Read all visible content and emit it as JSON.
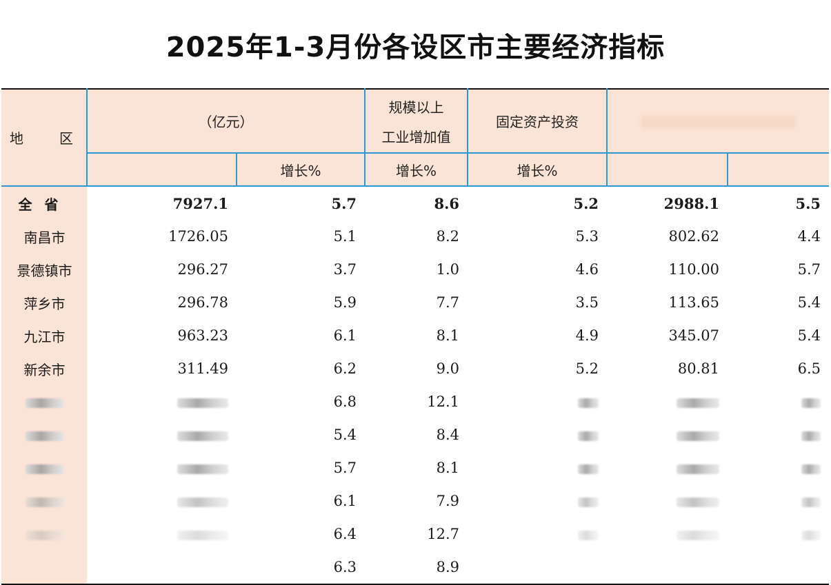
{
  "title": "2025年1-3月份各设区市主要经济指标",
  "header": {
    "region": "地 区",
    "region_a": "地",
    "region_b": "区",
    "gdp_unit": "（亿元）",
    "industrial_line1": "规模以上",
    "industrial_line2": "工业增加值",
    "fixed_asset": "固定资产投资",
    "growth_pct": "增长%"
  },
  "rows": [
    {
      "region": "全省",
      "gdp": "7927.1",
      "gdp_growth": "5.7",
      "industrial_growth": "8.6",
      "fixed_asset_growth": "5.2",
      "col5": "2988.1",
      "col6": "5.5",
      "total": true
    },
    {
      "region": "南昌市",
      "gdp": "1726.05",
      "gdp_growth": "5.1",
      "industrial_growth": "8.2",
      "fixed_asset_growth": "5.3",
      "col5": "802.62",
      "col6": "4.4"
    },
    {
      "region": "景德镇市",
      "gdp": "296.27",
      "gdp_growth": "3.7",
      "industrial_growth": "1.0",
      "fixed_asset_growth": "4.6",
      "col5": "110.00",
      "col6": "5.7"
    },
    {
      "region": "萍乡市",
      "gdp": "296.78",
      "gdp_growth": "5.9",
      "industrial_growth": "7.7",
      "fixed_asset_growth": "3.5",
      "col5": "113.65",
      "col6": "5.4"
    },
    {
      "region": "九江市",
      "gdp": "963.23",
      "gdp_growth": "6.1",
      "industrial_growth": "8.1",
      "fixed_asset_growth": "4.9",
      "col5": "345.07",
      "col6": "5.4"
    },
    {
      "region": "新余市",
      "gdp": "311.49",
      "gdp_growth": "6.2",
      "industrial_growth": "9.0",
      "fixed_asset_growth": "5.2",
      "col5": "80.81",
      "col6": "6.5"
    },
    {
      "region": "",
      "gdp": "",
      "gdp_growth": "6.8",
      "industrial_growth": "12.1",
      "fixed_asset_growth": "",
      "col5": "",
      "col6": "",
      "blurred": "dark"
    },
    {
      "region": "",
      "gdp": "",
      "gdp_growth": "5.4",
      "industrial_growth": "8.4",
      "fixed_asset_growth": "",
      "col5": "",
      "col6": "",
      "blurred": "dark"
    },
    {
      "region": "",
      "gdp": "",
      "gdp_growth": "5.7",
      "industrial_growth": "8.1",
      "fixed_asset_growth": "",
      "col5": "",
      "col6": "",
      "blurred": "dark"
    },
    {
      "region": "",
      "gdp": "",
      "gdp_growth": "6.1",
      "industrial_growth": "7.9",
      "fixed_asset_growth": "",
      "col5": "",
      "col6": "",
      "blurred": "mid"
    },
    {
      "region": "",
      "gdp": "",
      "gdp_growth": "6.4",
      "industrial_growth": "12.7",
      "fixed_asset_growth": "",
      "col5": "",
      "col6": "",
      "blurred": "light"
    },
    {
      "region": "",
      "gdp": "",
      "gdp_growth": "6.3",
      "industrial_growth": "8.9",
      "fixed_asset_growth": "",
      "col5": "",
      "col6": "",
      "blurred": "none"
    }
  ],
  "colors": {
    "header_bg": "#fbe4d5",
    "grid_line": "#2e97d4",
    "rule": "#111111"
  }
}
